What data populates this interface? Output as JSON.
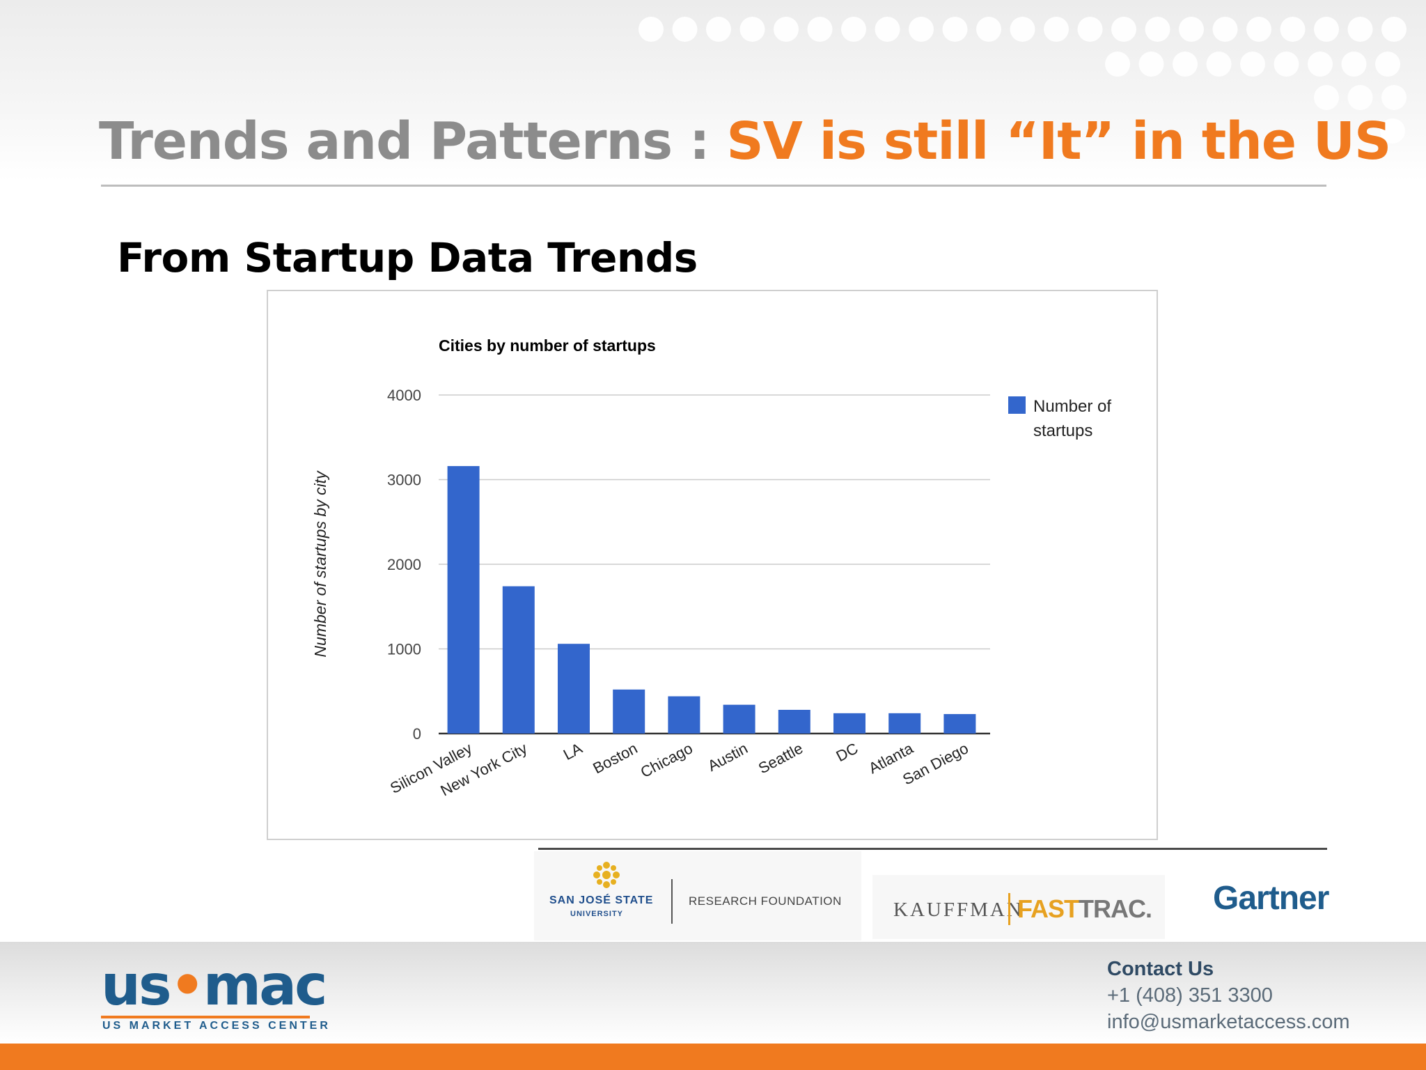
{
  "slide": {
    "title_prefix": "Trends and Patterns :",
    "title_highlight": "SV is still “It” in the US",
    "subtitle": "From Startup Data Trends"
  },
  "colors": {
    "accent_orange": "#f07a1f",
    "title_gray": "#8c8c8c",
    "bar_blue": "#3366cc",
    "brand_blue": "#1f5c8c"
  },
  "chart_data": {
    "type": "bar",
    "title": "Cities by number of startups",
    "xlabel": "",
    "ylabel": "Number of startups by city",
    "ylim": [
      0,
      4000
    ],
    "yticks": [
      "0",
      "1000",
      "2000",
      "3000",
      "4000"
    ],
    "grid": true,
    "legend_position": "right",
    "categories": [
      "Silicon Valley",
      "New York City",
      "LA",
      "Boston",
      "Chicago",
      "Austin",
      "Seattle",
      "DC",
      "Atlanta",
      "San Diego"
    ],
    "series": [
      {
        "name": "Number of startups",
        "values": [
          3160,
          1740,
          1060,
          520,
          440,
          340,
          280,
          240,
          240,
          230
        ]
      }
    ],
    "legend_label_lines": [
      "Number of",
      "startups"
    ]
  },
  "partners": {
    "sjsu_name": "SAN JOSÉ STATE",
    "sjsu_university": "UNIVERSITY",
    "sjsu_research": "RESEARCH FOUNDATION",
    "kauffman": "KAUFFMAN",
    "fasttrac_fast": "FAST",
    "fasttrac_trac": "TRAC",
    "fasttrac_dot": ".",
    "gartner": "Gartner"
  },
  "footer": {
    "logo_us": "us",
    "logo_dot": "•",
    "logo_mac": "mac",
    "logo_tagline": "US MARKET ACCESS CENTER",
    "contact_label": "Contact Us",
    "phone": "+1 (408) 351 3300",
    "email": "info@usmarketaccess.com"
  }
}
